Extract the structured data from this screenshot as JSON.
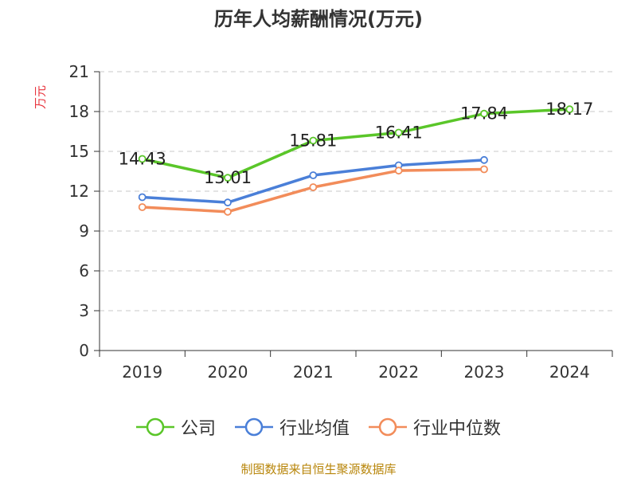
{
  "chart_data": {
    "type": "line",
    "title": "历年人均薪酬情况(万元)",
    "ylabel": "万元",
    "xlabel": "",
    "categories": [
      "2019",
      "2020",
      "2021",
      "2022",
      "2023",
      "2024"
    ],
    "ylim": [
      0,
      21
    ],
    "yticks": [
      "0",
      "3",
      "6",
      "9",
      "12",
      "15",
      "18",
      "21"
    ],
    "grid": true,
    "legend_position": "bottom",
    "series": [
      {
        "name": "公司",
        "color": "#5ac629",
        "values": [
          14.43,
          13.01,
          15.81,
          16.41,
          17.84,
          18.17
        ],
        "labels": [
          "14.43",
          "13.01",
          "15.81",
          "16.41",
          "17.84",
          "18.17"
        ]
      },
      {
        "name": "行业均值",
        "color": "#4a7fd8",
        "values": [
          11.55,
          11.15,
          13.2,
          13.95,
          14.35,
          null
        ]
      },
      {
        "name": "行业中位数",
        "color": "#f28c5a",
        "values": [
          10.8,
          10.45,
          12.3,
          13.55,
          13.65,
          null
        ]
      }
    ]
  },
  "source": "制图数据来自恒生聚源数据库"
}
